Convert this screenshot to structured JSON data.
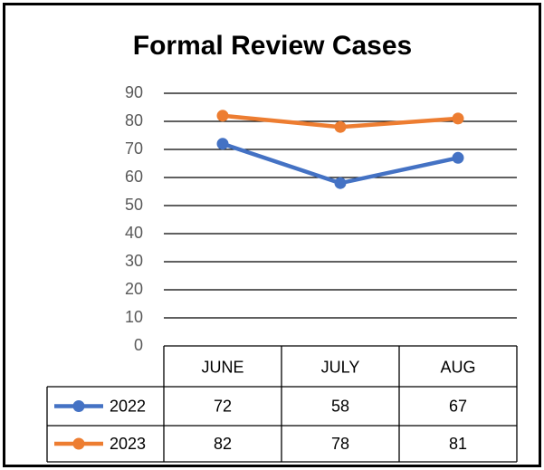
{
  "chart_data": {
    "type": "line",
    "title": "Formal Review Cases",
    "categories": [
      "JUNE",
      "JULY",
      "AUG"
    ],
    "series": [
      {
        "name": "2022",
        "color": "#4472c4",
        "values": [
          72,
          58,
          67
        ]
      },
      {
        "name": "2023",
        "color": "#ed7d31",
        "values": [
          82,
          78,
          81
        ]
      }
    ],
    "ylim": [
      0,
      90
    ],
    "yticks": [
      0,
      10,
      20,
      30,
      40,
      50,
      60,
      70,
      80,
      90
    ],
    "grid": true,
    "data_table": true
  }
}
